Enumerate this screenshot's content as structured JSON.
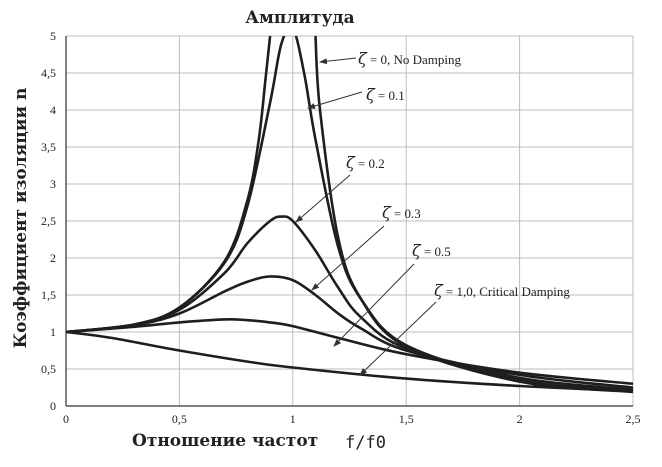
{
  "chart_data": {
    "type": "line",
    "title": "Амплитуда",
    "ylabel": "Коэффициент изоляции n",
    "xlabel": "Отношение частот",
    "xlabel_ratio": "f/f0",
    "xlim": [
      0,
      2.5
    ],
    "ylim": [
      0,
      5
    ],
    "grid": true,
    "x_ticks": [
      "0",
      "0,5",
      "1",
      "1,5",
      "2",
      "2,5"
    ],
    "y_ticks": [
      "0",
      "0,5",
      "1",
      "1,5",
      "2",
      "2,5",
      "3",
      "3,5",
      "4",
      "4,5",
      "5"
    ],
    "series": [
      {
        "name": "ζ = 0,  No Damping",
        "zeta": 0,
        "label_prefix": "ζ",
        "label_text": " = 0,  No Damping",
        "points": [
          [
            0,
            1
          ],
          [
            0.3,
            1.1
          ],
          [
            0.5,
            1.33
          ],
          [
            0.7,
            1.96
          ],
          [
            0.8,
            2.78
          ],
          [
            0.85,
            3.6
          ],
          [
            0.88,
            4.43
          ],
          [
            0.9,
            5
          ],
          [
            1.1,
            5
          ],
          [
            1.12,
            4.0
          ],
          [
            1.2,
            2.27
          ],
          [
            1.3,
            1.45
          ],
          [
            1.5,
            0.8
          ],
          [
            2,
            0.33
          ],
          [
            2.5,
            0.19
          ]
        ]
      },
      {
        "name": "ζ = 0.1",
        "zeta": 0.1,
        "label_prefix": "ζ",
        "label_text": " = 0.1",
        "points": [
          [
            0,
            1
          ],
          [
            0.3,
            1.1
          ],
          [
            0.5,
            1.33
          ],
          [
            0.7,
            1.94
          ],
          [
            0.8,
            2.7
          ],
          [
            0.9,
            4.1
          ],
          [
            0.95,
            4.9
          ],
          [
            1,
            5.1
          ],
          [
            1.05,
            4.5
          ],
          [
            1.1,
            3.6
          ],
          [
            1.2,
            2.15
          ],
          [
            1.3,
            1.45
          ],
          [
            1.5,
            0.82
          ],
          [
            2,
            0.35
          ],
          [
            2.5,
            0.2
          ]
        ]
      },
      {
        "name": "ζ = 0.2",
        "zeta": 0.2,
        "label_prefix": "ζ",
        "label_text": " = 0.2",
        "points": [
          [
            0,
            1
          ],
          [
            0.3,
            1.1
          ],
          [
            0.5,
            1.3
          ],
          [
            0.7,
            1.8
          ],
          [
            0.8,
            2.2
          ],
          [
            0.9,
            2.5
          ],
          [
            0.95,
            2.56
          ],
          [
            1,
            2.5
          ],
          [
            1.1,
            2.1
          ],
          [
            1.2,
            1.6
          ],
          [
            1.3,
            1.2
          ],
          [
            1.5,
            0.78
          ],
          [
            2,
            0.38
          ],
          [
            2.5,
            0.22
          ]
        ]
      },
      {
        "name": "ζ = 0.3",
        "zeta": 0.3,
        "label_prefix": "ζ",
        "label_text": " = 0.3",
        "points": [
          [
            0,
            1
          ],
          [
            0.3,
            1.09
          ],
          [
            0.5,
            1.25
          ],
          [
            0.7,
            1.55
          ],
          [
            0.8,
            1.68
          ],
          [
            0.9,
            1.75
          ],
          [
            1,
            1.7
          ],
          [
            1.1,
            1.5
          ],
          [
            1.2,
            1.25
          ],
          [
            1.3,
            1.05
          ],
          [
            1.5,
            0.75
          ],
          [
            2,
            0.42
          ],
          [
            2.5,
            0.25
          ]
        ]
      },
      {
        "name": "ζ = 0.5",
        "zeta": 0.5,
        "label_prefix": "ζ",
        "label_text": " = 0.5",
        "points": [
          [
            0,
            1
          ],
          [
            0.3,
            1.07
          ],
          [
            0.5,
            1.13
          ],
          [
            0.7,
            1.17
          ],
          [
            0.8,
            1.16
          ],
          [
            0.9,
            1.13
          ],
          [
            1,
            1.08
          ],
          [
            1.2,
            0.92
          ],
          [
            1.5,
            0.7
          ],
          [
            2,
            0.45
          ],
          [
            2.5,
            0.3
          ]
        ]
      },
      {
        "name": "ζ = 1,0, Critical Damping",
        "zeta": 1.0,
        "label_prefix": "ζ",
        "label_text": " = 1,0, Critical Damping",
        "points": [
          [
            0,
            1
          ],
          [
            0.2,
            0.92
          ],
          [
            0.5,
            0.75
          ],
          [
            0.8,
            0.6
          ],
          [
            1,
            0.52
          ],
          [
            1.5,
            0.37
          ],
          [
            2,
            0.27
          ],
          [
            2.5,
            0.2
          ]
        ]
      }
    ]
  }
}
